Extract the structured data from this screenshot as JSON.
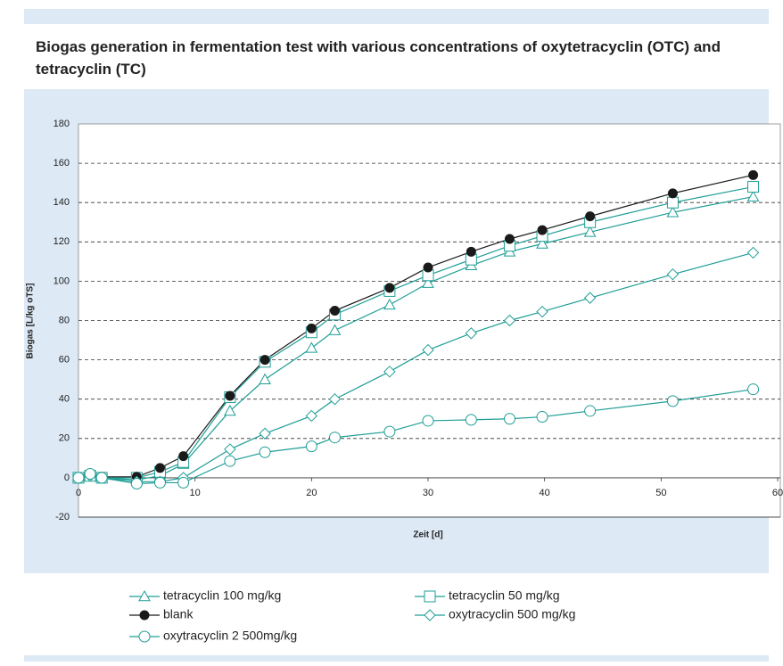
{
  "chart_data": {
    "type": "line",
    "title": "Biogas generation in fermentation test with various concentrations of oxytetracyclin (OTC) and tetracyclin (TC)",
    "xlabel": "Zeit [d]",
    "ylabel": "Biogas [L/kg oTS]",
    "x": [
      0,
      1,
      2,
      5,
      7,
      9,
      13,
      16,
      20,
      22,
      26.7,
      30,
      33.7,
      37,
      39.8,
      43.9,
      51,
      57.9
    ],
    "xlim": [
      0,
      60
    ],
    "xticks": [
      0,
      10,
      20,
      30,
      40,
      50,
      60
    ],
    "ylim": [
      -20,
      180
    ],
    "yticks": [
      -20,
      0,
      20,
      40,
      60,
      80,
      100,
      120,
      140,
      160,
      180
    ],
    "grid": true,
    "series": [
      {
        "name": "tetracyclin 100 mg/kg",
        "color": "#1f9e96",
        "marker": "triangle",
        "values": [
          0,
          1,
          0,
          -1,
          1,
          7,
          34,
          50,
          66,
          75,
          88,
          99,
          108,
          115,
          119,
          125,
          135,
          143
        ]
      },
      {
        "name": "tetracyclin 50 mg/kg",
        "color": "#1f9e96",
        "marker": "square",
        "values": [
          0,
          1,
          0,
          0,
          3,
          8,
          41,
          59,
          74,
          83,
          95,
          103,
          111,
          118,
          123,
          130,
          140,
          148
        ]
      },
      {
        "name": "blank",
        "color": "#1a1a1a",
        "marker": "dot",
        "values": [
          0,
          1.8,
          0.5,
          0.5,
          5,
          11,
          41.7,
          60,
          76,
          85,
          96.6,
          107,
          115,
          121.5,
          126,
          133,
          144.7,
          154
        ]
      },
      {
        "name": "oxytracyclin 500 mg/kg",
        "color": "#1f9e96",
        "marker": "diamond",
        "values": [
          0,
          1,
          0,
          -2,
          -2,
          0,
          14.5,
          22.5,
          31.5,
          40,
          54,
          65,
          73.5,
          80,
          84.5,
          91.5,
          103.5,
          114.5
        ]
      },
      {
        "name": "oxytracyclin 2 500mg/kg",
        "color": "#1f9e96",
        "marker": "circle",
        "values": [
          0,
          2,
          0,
          -3,
          -2.5,
          -2.5,
          8.5,
          13,
          16,
          20.5,
          23.5,
          29,
          29.5,
          30,
          31,
          34,
          39,
          45
        ]
      }
    ]
  }
}
